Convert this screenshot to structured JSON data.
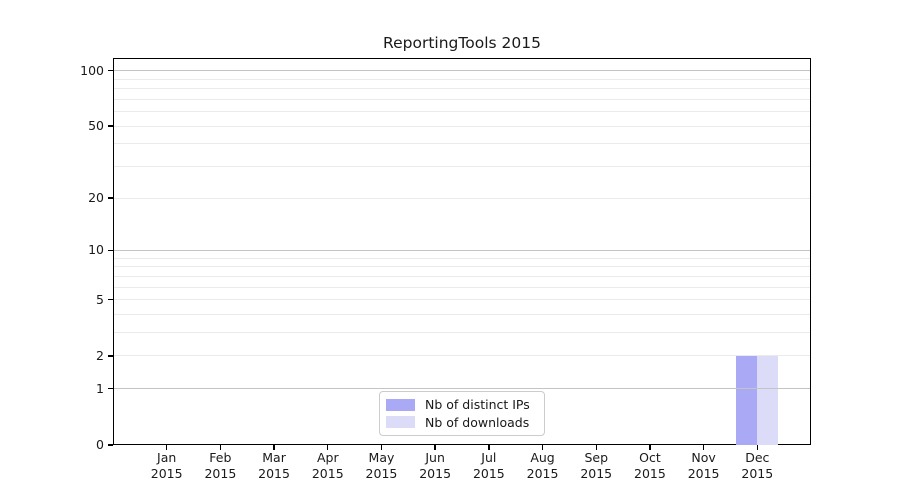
{
  "chart_data": {
    "type": "bar",
    "title": "ReportingTools 2015",
    "categories": [
      "Jan",
      "Feb",
      "Mar",
      "Apr",
      "May",
      "Jun",
      "Jul",
      "Aug",
      "Sep",
      "Oct",
      "Nov",
      "Dec"
    ],
    "category_year": "2015",
    "series": [
      {
        "name": "Nb of distinct IPs",
        "color": "#a9a9f5",
        "values": [
          0,
          0,
          0,
          0,
          0,
          0,
          0,
          0,
          0,
          0,
          0,
          2
        ]
      },
      {
        "name": "Nb of downloads",
        "color": "#dcdcf8",
        "values": [
          0,
          0,
          0,
          0,
          0,
          0,
          0,
          0,
          0,
          0,
          0,
          2
        ]
      }
    ],
    "yscale": "log1p",
    "ylim": [
      0,
      116
    ],
    "y_tick_values": [
      0,
      1,
      2,
      5,
      10,
      20,
      50,
      100
    ],
    "y_major_grid_values": [
      1,
      10,
      100
    ],
    "y_minor_grid_values": [
      2,
      3,
      4,
      5,
      6,
      7,
      8,
      9,
      20,
      30,
      40,
      50,
      60,
      70,
      80,
      90
    ],
    "grid": "horizontal",
    "legend_position": "bottom-center"
  },
  "colors": {
    "background": "#ffffff",
    "axis": "#000000",
    "text": "#1a1a1a",
    "grid_major": "#c4c4c4",
    "grid_minor": "#eaeaea",
    "legend_border": "#cccccc"
  }
}
